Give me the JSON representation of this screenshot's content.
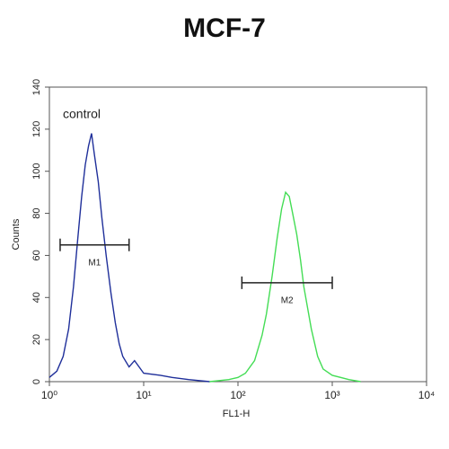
{
  "chart_data": {
    "type": "line",
    "title": "MCF-7",
    "xlabel": "FL1-H",
    "ylabel": "Counts",
    "xscale": "log",
    "xlim": [
      1,
      10000
    ],
    "xticks": [
      {
        "value": 1,
        "label": "10⁰"
      },
      {
        "value": 10,
        "label": "10¹"
      },
      {
        "value": 100,
        "label": "10²"
      },
      {
        "value": 1000,
        "label": "10³"
      },
      {
        "value": 10000,
        "label": "10⁴"
      }
    ],
    "ylim": [
      0,
      140
    ],
    "yticks": [
      0,
      20,
      40,
      60,
      80,
      100,
      120,
      140
    ],
    "series": [
      {
        "name": "control",
        "color": "#1f2f9a",
        "x": [
          1,
          1.2,
          1.4,
          1.6,
          1.8,
          2.0,
          2.2,
          2.4,
          2.6,
          2.8,
          3.0,
          3.3,
          3.6,
          4.0,
          4.5,
          5,
          5.5,
          6,
          7,
          8,
          10,
          15,
          20,
          30,
          50
        ],
        "values": [
          2,
          5,
          12,
          25,
          45,
          68,
          88,
          103,
          112,
          118,
          108,
          95,
          78,
          60,
          42,
          28,
          18,
          12,
          7,
          10,
          4,
          3,
          2,
          1,
          0
        ]
      },
      {
        "color": "#44dd55",
        "x": [
          50,
          80,
          100,
          120,
          150,
          180,
          200,
          230,
          260,
          290,
          320,
          350,
          380,
          420,
          460,
          500,
          600,
          700,
          800,
          1000,
          1500,
          2000
        ],
        "values": [
          0,
          1,
          2,
          4,
          10,
          22,
          32,
          50,
          68,
          82,
          90,
          88,
          80,
          70,
          58,
          45,
          25,
          12,
          6,
          3,
          1,
          0
        ]
      }
    ],
    "gates": [
      {
        "label": "M1",
        "x": [
          1.3,
          7
        ],
        "y": 65
      },
      {
        "label": "M2",
        "x": [
          110,
          1000
        ],
        "y": 47
      }
    ]
  }
}
